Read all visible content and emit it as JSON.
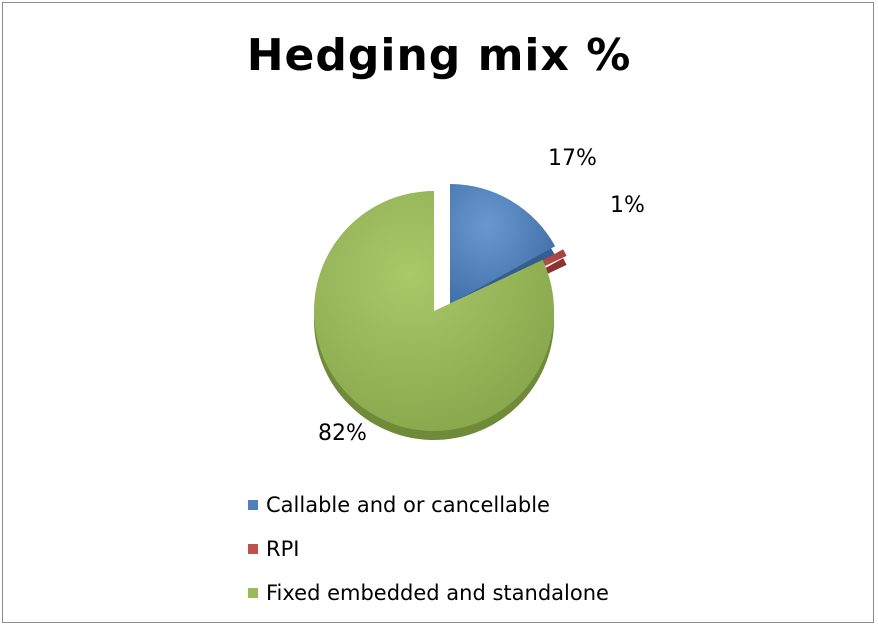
{
  "chart_data": {
    "type": "pie",
    "title": "Hedging mix %",
    "slices": [
      {
        "label": "Callable and or cancellable",
        "value": 17,
        "data_label": "17%",
        "color": "#4f81bd"
      },
      {
        "label": "RPI",
        "value": 1,
        "data_label": "1%",
        "color": "#c0504d"
      },
      {
        "label": "Fixed embedded and standalone",
        "value": 82,
        "data_label": "82%",
        "color": "#9bbb59"
      }
    ],
    "legend_position": "bottom",
    "exploded": true,
    "style": "3d"
  }
}
